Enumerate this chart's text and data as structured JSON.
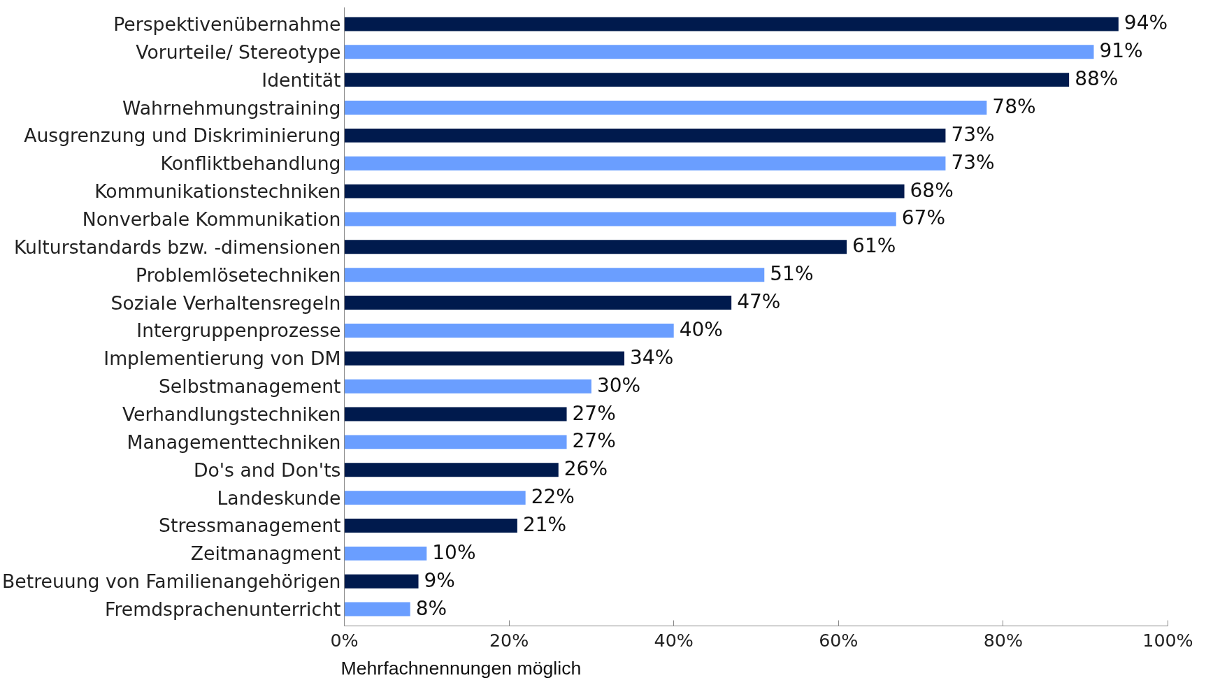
{
  "chart_data": {
    "type": "bar",
    "orientation": "horizontal",
    "categories": [
      "Perspektivenübernahme",
      "Vorurteile/ Stereotype",
      "Identität",
      "Wahrnehmungstraining",
      "Ausgrenzung und Diskriminierung",
      "Konfliktbehandlung",
      "Kommunikationstechniken",
      "Nonverbale Kommunikation",
      "Kulturstandards bzw. -dimensionen",
      "Problemlösetechniken",
      "Soziale Verhaltensregeln",
      "Intergruppenprozesse",
      "Implementierung von DM",
      "Selbstmanagement",
      "Verhandlungstechniken",
      "Managementtechniken",
      "Do's and Don'ts",
      "Landeskunde",
      "Stressmanagement",
      "Zeitmanagment",
      "Betreuung von Familienangehörigen",
      "Fremdsprachenunterricht"
    ],
    "values": [
      94,
      91,
      88,
      78,
      73,
      73,
      68,
      67,
      61,
      51,
      47,
      40,
      34,
      30,
      27,
      27,
      26,
      22,
      21,
      10,
      9,
      8
    ],
    "value_labels": [
      "94%",
      "91%",
      "88%",
      "78%",
      "73%",
      "73%",
      "68%",
      "67%",
      "61%",
      "51%",
      "47%",
      "40%",
      "34%",
      "30%",
      "27%",
      "27%",
      "26%",
      "22%",
      "21%",
      "10%",
      "9%",
      "8%"
    ],
    "colors": [
      "#001a4d",
      "#6a9eff",
      "#001a4d",
      "#6a9eff",
      "#001a4d",
      "#6a9eff",
      "#001a4d",
      "#6a9eff",
      "#001a4d",
      "#6a9eff",
      "#001a4d",
      "#6a9eff",
      "#001a4d",
      "#6a9eff",
      "#001a4d",
      "#6a9eff",
      "#001a4d",
      "#6a9eff",
      "#001a4d",
      "#6a9eff",
      "#001a4d",
      "#6a9eff"
    ],
    "xlim": [
      0,
      100
    ],
    "xticks": [
      {
        "value": 0,
        "label": "0%"
      },
      {
        "value": 20,
        "label": "20%"
      },
      {
        "value": 40,
        "label": "40%"
      },
      {
        "value": 60,
        "label": "60%"
      },
      {
        "value": 80,
        "label": "80%"
      },
      {
        "value": 100,
        "label": "100%"
      }
    ],
    "grid": false,
    "annotations": [
      "Mehrfachnennungen möglich"
    ]
  }
}
